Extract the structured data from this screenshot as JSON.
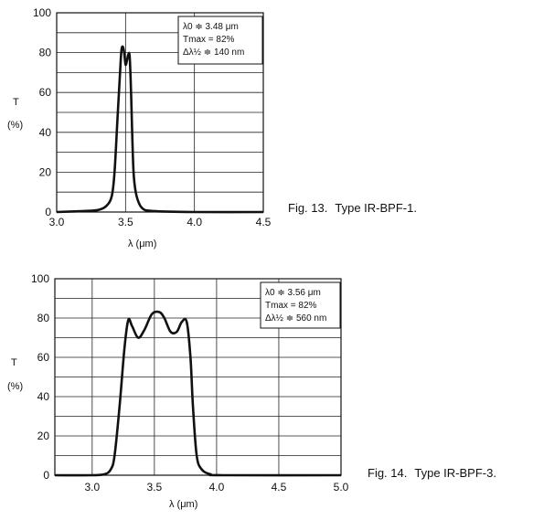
{
  "chart_data": [
    {
      "type": "line",
      "caption_fig": "Fig. 13.",
      "caption_title": "Type IR-BPF-1.",
      "ylabel": "T",
      "yunit": "(%)",
      "xlabel": "λ (μm)",
      "xlim": [
        3.0,
        4.5
      ],
      "ylim": [
        0,
        100
      ],
      "xticks": [
        "3.0",
        "3.5",
        "4.0",
        "4.5"
      ],
      "yticks": [
        "0",
        "20",
        "40",
        "60",
        "80",
        "100"
      ],
      "grid": true,
      "annotation": [
        "λ0 ≑ 3.48 μm",
        "Tmax = 82%",
        "Δλ½ ≑ 140 nm"
      ],
      "series": [
        {
          "x": [
            3.0,
            3.2,
            3.3,
            3.36,
            3.4,
            3.42,
            3.44,
            3.46,
            3.47,
            3.48,
            3.49,
            3.5,
            3.51,
            3.52,
            3.53,
            3.54,
            3.55,
            3.56,
            3.58,
            3.62,
            3.7,
            4.0,
            4.5
          ],
          "y": [
            0,
            0.5,
            1,
            3,
            8,
            20,
            45,
            70,
            81,
            83,
            80,
            74,
            76,
            79,
            78,
            60,
            35,
            18,
            8,
            2,
            0.5,
            0,
            0
          ]
        }
      ]
    },
    {
      "type": "line",
      "caption_fig": "Fig. 14.",
      "caption_title": "Type IR-BPF-3.",
      "ylabel": "T",
      "yunit": "(%)",
      "xlabel": "λ (μm)",
      "xlim": [
        2.7,
        5.0
      ],
      "ylim": [
        0,
        100
      ],
      "xticks": [
        "3.0",
        "3.5",
        "4.0",
        "4.5",
        "5.0"
      ],
      "xtick_values": [
        3.0,
        3.5,
        4.0,
        4.5,
        5.0
      ],
      "yticks": [
        "0",
        "20",
        "40",
        "60",
        "80",
        "100"
      ],
      "grid": true,
      "annotation": [
        "λ0 ≑ 3.56 μm",
        "Tmax = 82%",
        "Δλ½ ≑ 560 nm"
      ],
      "series": [
        {
          "x": [
            2.7,
            3.0,
            3.1,
            3.15,
            3.18,
            3.22,
            3.26,
            3.29,
            3.32,
            3.37,
            3.42,
            3.48,
            3.54,
            3.58,
            3.63,
            3.68,
            3.72,
            3.76,
            3.79,
            3.81,
            3.84,
            3.88,
            3.95,
            4.05,
            5.0
          ],
          "y": [
            0,
            0,
            0.5,
            3,
            10,
            35,
            65,
            79,
            76,
            70,
            74,
            82,
            83,
            80,
            73,
            73,
            78,
            78,
            60,
            35,
            10,
            3,
            0.5,
            0,
            0
          ]
        }
      ]
    }
  ]
}
